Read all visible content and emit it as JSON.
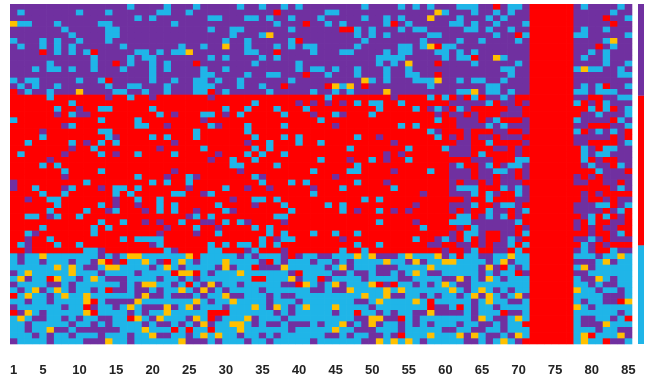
{
  "chart_data": {
    "type": "heatmap",
    "title": "",
    "xlabel": "",
    "ylabel": "",
    "columns": 85,
    "x_ticks": [
      1,
      5,
      10,
      15,
      20,
      25,
      30,
      35,
      40,
      45,
      50,
      55,
      60,
      65,
      70,
      75,
      80,
      85
    ],
    "categories": [
      "purple",
      "red",
      "cyan",
      "orange"
    ],
    "colors": {
      "purple": "#7030A0",
      "red": "#FF0000",
      "cyan": "#1FB5E8",
      "orange": "#FFC000"
    },
    "bands": [
      {
        "category": "purple",
        "from": 0.0,
        "to": 0.27
      },
      {
        "category": "red",
        "from": 0.27,
        "to": 0.73
      },
      {
        "category": "cyan",
        "from": 0.73,
        "to": 1.0
      }
    ],
    "red_dominant_columns": [
      72,
      73,
      74,
      75,
      76,
      77
    ],
    "legend_strip": [
      {
        "category": "purple",
        "from": 0.0,
        "to": 0.27
      },
      {
        "category": "red",
        "from": 0.27,
        "to": 0.71
      },
      {
        "category": "cyan",
        "from": 0.71,
        "to": 1.0
      }
    ]
  }
}
